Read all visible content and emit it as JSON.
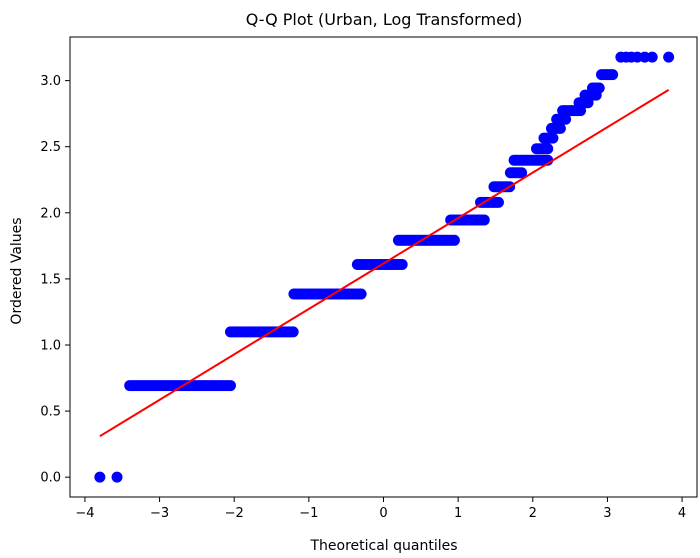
{
  "chart_data": {
    "type": "scatter",
    "title": "Q-Q Plot (Urban, Log Transformed)",
    "xlabel": "Theoretical quantiles",
    "ylabel": "Ordered Values",
    "xlim": [
      -4.2,
      4.2
    ],
    "ylim": [
      -0.15,
      3.33
    ],
    "xticks": [
      -4,
      -3,
      -2,
      -1,
      0,
      1,
      2,
      3,
      4
    ],
    "xtick_labels": [
      "−4",
      "−3",
      "−2",
      "−1",
      "0",
      "1",
      "2",
      "3",
      "4"
    ],
    "yticks": [
      0.0,
      0.5,
      1.0,
      1.5,
      2.0,
      2.5,
      3.0
    ],
    "ytick_labels": [
      "0.0",
      "0.5",
      "1.0",
      "1.5",
      "2.0",
      "2.5",
      "3.0"
    ],
    "grid": false,
    "series": [
      {
        "kind": "points",
        "color": "#0000ff",
        "levels": [
          {
            "y": 0.0,
            "x": [
              -3.8,
              -3.57
            ]
          },
          {
            "y": 0.693,
            "x_range": [
              -3.4,
              -2.05
            ]
          },
          {
            "y": 1.099,
            "x_range": [
              -2.05,
              -1.2
            ]
          },
          {
            "y": 1.386,
            "x_range": [
              -1.2,
              -0.3
            ]
          },
          {
            "y": 1.609,
            "x_range": [
              -0.35,
              0.25
            ]
          },
          {
            "y": 1.792,
            "x_range": [
              0.2,
              0.95
            ]
          },
          {
            "y": 1.946,
            "x_range": [
              0.9,
              1.35
            ]
          },
          {
            "y": 2.079,
            "x_range": [
              1.3,
              1.55
            ]
          },
          {
            "y": 2.197,
            "x_range": [
              1.48,
              1.7
            ]
          },
          {
            "y": 2.303,
            "x_range": [
              1.7,
              1.85
            ]
          },
          {
            "y": 2.398,
            "x_range": [
              1.75,
              2.2
            ]
          },
          {
            "y": 2.485,
            "x_range": [
              2.05,
              2.2
            ]
          },
          {
            "y": 2.565,
            "x_range": [
              2.15,
              2.28
            ]
          },
          {
            "y": 2.639,
            "x_range": [
              2.25,
              2.38
            ]
          },
          {
            "y": 2.708,
            "x_range": [
              2.32,
              2.45
            ]
          },
          {
            "y": 2.773,
            "x_range": [
              2.4,
              2.65
            ]
          },
          {
            "y": 2.833,
            "x_range": [
              2.62,
              2.75
            ]
          },
          {
            "y": 2.89,
            "x_range": [
              2.7,
              2.85
            ]
          },
          {
            "y": 2.944,
            "x_range": [
              2.8,
              2.9
            ]
          },
          {
            "y": 3.045,
            "x_range": [
              2.92,
              3.08
            ]
          },
          {
            "y": 3.178,
            "x": [
              3.18,
              3.25,
              3.32,
              3.4,
              3.5,
              3.6,
              3.82
            ]
          }
        ]
      },
      {
        "kind": "line",
        "color": "#ff0000",
        "x": [
          -3.8,
          3.82
        ],
        "y": [
          0.31,
          2.93
        ]
      }
    ]
  }
}
